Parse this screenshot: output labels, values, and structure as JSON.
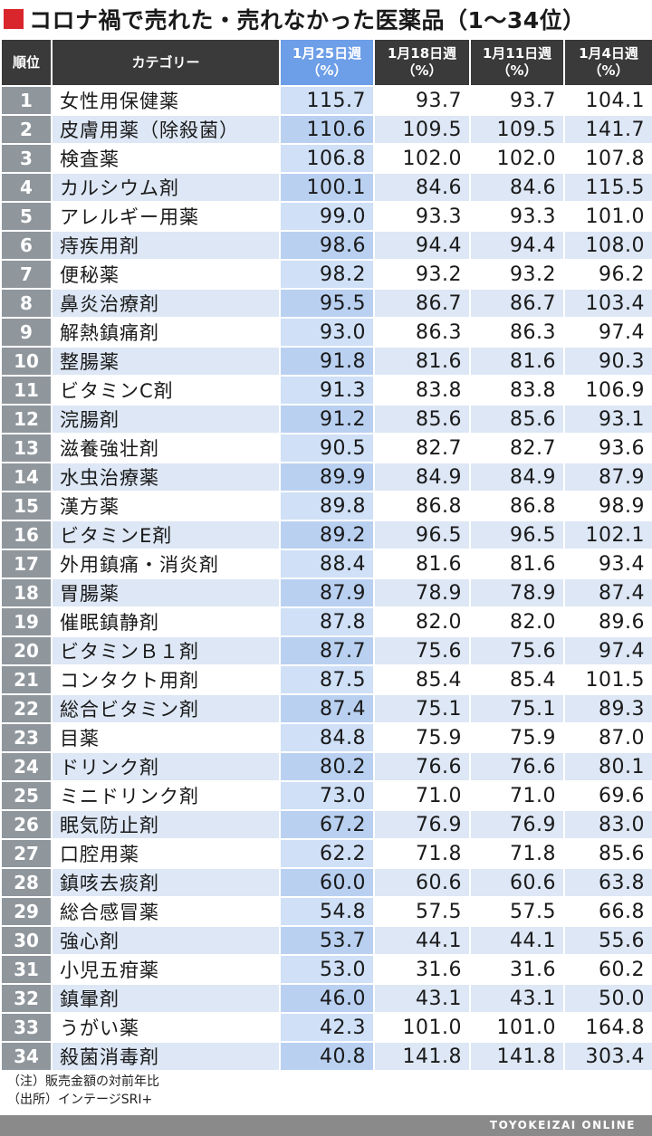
{
  "title": "コロナ禍で売れた・売れなかった医薬品（1〜34位）",
  "colors": {
    "accent_square": "#d9262c",
    "header_dark": "#3a3a3a",
    "header_highlight": "#6d9ee8",
    "rank_cell": "#8f969c"
  },
  "chart_data": {
    "type": "table",
    "columns": [
      "順位",
      "カテゴリー",
      "1月25日週\n（%）",
      "1月18日週\n（%）",
      "1月11日週\n（%）",
      "1月4日週\n（%）"
    ],
    "rows": [
      [
        "1",
        "女性用保健薬",
        "115.7",
        "93.7",
        "93.7",
        "104.1"
      ],
      [
        "2",
        "皮膚用薬（除殺菌）",
        "110.6",
        "109.5",
        "109.5",
        "141.7"
      ],
      [
        "3",
        "検査薬",
        "106.8",
        "102.0",
        "102.0",
        "107.8"
      ],
      [
        "4",
        "カルシウム剤",
        "100.1",
        "84.6",
        "84.6",
        "115.5"
      ],
      [
        "5",
        "アレルギー用薬",
        "99.0",
        "93.3",
        "93.3",
        "101.0"
      ],
      [
        "6",
        "痔疾用剤",
        "98.6",
        "94.4",
        "94.4",
        "108.0"
      ],
      [
        "7",
        "便秘薬",
        "98.2",
        "93.2",
        "93.2",
        "96.2"
      ],
      [
        "8",
        "鼻炎治療剤",
        "95.5",
        "86.7",
        "86.7",
        "103.4"
      ],
      [
        "9",
        "解熱鎮痛剤",
        "93.0",
        "86.3",
        "86.3",
        "97.4"
      ],
      [
        "10",
        "整腸薬",
        "91.8",
        "81.6",
        "81.6",
        "90.3"
      ],
      [
        "11",
        "ビタミンC剤",
        "91.3",
        "83.8",
        "83.8",
        "106.9"
      ],
      [
        "12",
        "浣腸剤",
        "91.2",
        "85.6",
        "85.6",
        "93.1"
      ],
      [
        "13",
        "滋養強壮剤",
        "90.5",
        "82.7",
        "82.7",
        "93.6"
      ],
      [
        "14",
        "水虫治療薬",
        "89.9",
        "84.9",
        "84.9",
        "87.9"
      ],
      [
        "15",
        "漢方薬",
        "89.8",
        "86.8",
        "86.8",
        "98.9"
      ],
      [
        "16",
        "ビタミンE剤",
        "89.2",
        "96.5",
        "96.5",
        "102.1"
      ],
      [
        "17",
        "外用鎮痛・消炎剤",
        "88.4",
        "81.6",
        "81.6",
        "93.4"
      ],
      [
        "18",
        "胃腸薬",
        "87.9",
        "78.9",
        "78.9",
        "87.4"
      ],
      [
        "19",
        "催眠鎮静剤",
        "87.8",
        "82.0",
        "82.0",
        "89.6"
      ],
      [
        "20",
        "ビタミンＢ１剤",
        "87.7",
        "75.6",
        "75.6",
        "97.4"
      ],
      [
        "21",
        "コンタクト用剤",
        "87.5",
        "85.4",
        "85.4",
        "101.5"
      ],
      [
        "22",
        "総合ビタミン剤",
        "87.4",
        "75.1",
        "75.1",
        "89.3"
      ],
      [
        "23",
        "目薬",
        "84.8",
        "75.9",
        "75.9",
        "87.0"
      ],
      [
        "24",
        "ドリンク剤",
        "80.2",
        "76.6",
        "76.6",
        "80.1"
      ],
      [
        "25",
        "ミニドリンク剤",
        "73.0",
        "71.0",
        "71.0",
        "69.6"
      ],
      [
        "26",
        "眠気防止剤",
        "67.2",
        "76.9",
        "76.9",
        "83.0"
      ],
      [
        "27",
        "口腔用薬",
        "62.2",
        "71.8",
        "71.8",
        "85.6"
      ],
      [
        "28",
        "鎮咳去痰剤",
        "60.0",
        "60.6",
        "60.6",
        "63.8"
      ],
      [
        "29",
        "総合感冒薬",
        "54.8",
        "57.5",
        "57.5",
        "66.8"
      ],
      [
        "30",
        "強心剤",
        "53.7",
        "44.1",
        "44.1",
        "55.6"
      ],
      [
        "31",
        "小児五疳薬",
        "53.0",
        "31.6",
        "31.6",
        "60.2"
      ],
      [
        "32",
        "鎮暈剤",
        "46.0",
        "43.1",
        "43.1",
        "50.0"
      ],
      [
        "33",
        "うがい薬",
        "42.3",
        "101.0",
        "101.0",
        "164.8"
      ],
      [
        "34",
        "殺菌消毒剤",
        "40.8",
        "141.8",
        "141.8",
        "303.4"
      ]
    ]
  },
  "notes": [
    "（注）販売金額の対前年比",
    "（出所）インテージSRI+"
  ],
  "footer": "TOYOKEIZAI ONLINE"
}
